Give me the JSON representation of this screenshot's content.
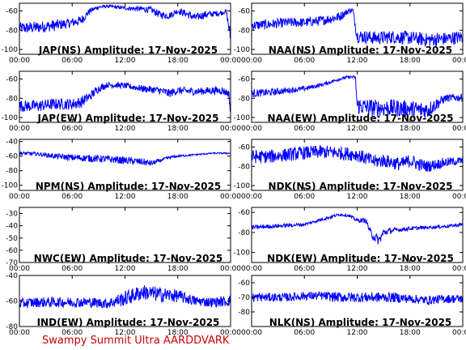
{
  "footer": {
    "text": "Swampy Summit Ultra AARDDVARK",
    "color": "#cc0000"
  },
  "colors": {
    "signal": "#0000ff",
    "axes": "#000000",
    "background": "#ffffff"
  },
  "x_tick_labels": [
    "00:00",
    "06:00",
    "12:00",
    "18:00",
    "00:00"
  ],
  "chart_data": [
    {
      "type": "line",
      "title": "JAP(NS) Amplitude: 17-Nov-2025",
      "xlabel": "",
      "ylabel": "",
      "ylim": [
        -105,
        -52
      ],
      "yticks": [
        -60,
        -80,
        -100
      ],
      "series": [
        {
          "x": [
            0,
            2,
            4,
            5.5,
            7,
            8,
            9,
            10,
            12,
            14,
            15,
            16,
            17,
            18,
            19,
            20,
            21,
            22,
            23,
            23.5,
            24
          ],
          "y": [
            -78,
            -77,
            -75,
            -73,
            -70,
            -60,
            -56,
            -55,
            -57,
            -58,
            -59,
            -64,
            -65,
            -60,
            -63,
            -67,
            -64,
            -63,
            -62,
            -60,
            -88
          ],
          "band": [
            12,
            12,
            12,
            10,
            10,
            6,
            4,
            3,
            4,
            6,
            7,
            8,
            7,
            6,
            8,
            8,
            8,
            6,
            5,
            4,
            18
          ]
        }
      ]
    },
    {
      "type": "line",
      "title": "NAA(NS) Amplitude: 17-Nov-2025",
      "xlabel": "",
      "ylabel": "",
      "ylim": [
        -105,
        -52
      ],
      "yticks": [
        -60,
        -80,
        -100
      ],
      "series": [
        {
          "x": [
            0,
            2,
            4,
            6,
            8,
            10,
            11,
            11.5,
            12,
            14,
            16,
            18,
            20,
            22,
            24
          ],
          "y": [
            -75,
            -74,
            -72,
            -72,
            -70,
            -66,
            -60,
            -59,
            -86,
            -88,
            -87,
            -88,
            -90,
            -89,
            -87
          ],
          "band": [
            10,
            10,
            10,
            10,
            10,
            10,
            6,
            5,
            14,
            14,
            14,
            14,
            14,
            14,
            14
          ]
        }
      ]
    },
    {
      "type": "line",
      "title": "JAP(EW) Amplitude: 17-Nov-2025",
      "xlabel": "",
      "ylabel": "",
      "ylim": [
        -105,
        -52
      ],
      "yticks": [
        -60,
        -80,
        -100
      ],
      "series": [
        {
          "x": [
            0,
            2,
            4,
            6,
            7,
            8,
            9,
            10,
            12,
            14,
            16,
            17,
            18,
            20,
            22,
            23,
            23.8,
            24
          ],
          "y": [
            -88,
            -88,
            -86,
            -86,
            -84,
            -78,
            -70,
            -66,
            -67,
            -70,
            -72,
            -75,
            -72,
            -73,
            -72,
            -72,
            -75,
            -95
          ],
          "band": [
            12,
            12,
            12,
            12,
            12,
            10,
            8,
            6,
            6,
            7,
            8,
            9,
            8,
            8,
            8,
            8,
            8,
            15
          ]
        }
      ]
    },
    {
      "type": "line",
      "title": "NAA(EW) Amplitude: 17-Nov-2025",
      "xlabel": "",
      "ylabel": "",
      "ylim": [
        -105,
        -52
      ],
      "yticks": [
        -60,
        -80,
        -100
      ],
      "series": [
        {
          "x": [
            0,
            2,
            4,
            6,
            8,
            10,
            11,
            11.8,
            12,
            14,
            16,
            18,
            19,
            20,
            22,
            24
          ],
          "y": [
            -75,
            -74,
            -72,
            -70,
            -66,
            -60,
            -58,
            -58,
            -88,
            -90,
            -90,
            -91,
            -92,
            -92,
            -80,
            -79
          ],
          "band": [
            8,
            8,
            6,
            5,
            4,
            3,
            3,
            3,
            18,
            18,
            18,
            18,
            18,
            18,
            8,
            8
          ]
        }
      ]
    },
    {
      "type": "line",
      "title": "NPM(NS) Amplitude: 17-Nov-2025",
      "xlabel": "",
      "ylabel": "",
      "ylim": [
        -107,
        -37
      ],
      "yticks": [
        -40,
        -60,
        -80,
        -100
      ],
      "series": [
        {
          "x": [
            0,
            2,
            4,
            6,
            8,
            10,
            12,
            14,
            15,
            16,
            17,
            18,
            20,
            22,
            24
          ],
          "y": [
            -56,
            -57,
            -60,
            -62,
            -63,
            -64,
            -66,
            -68,
            -70,
            -66,
            -62,
            -60,
            -58,
            -56,
            -56
          ],
          "band": [
            5,
            5,
            7,
            9,
            10,
            10,
            10,
            10,
            8,
            5,
            4,
            3,
            2,
            2,
            2
          ]
        }
      ]
    },
    {
      "type": "line",
      "title": "NDK(NS) Amplitude: 17-Nov-2025",
      "xlabel": "",
      "ylabel": "",
      "ylim": [
        -105,
        -52
      ],
      "yticks": [
        -60,
        -80,
        -100
      ],
      "series": [
        {
          "x": [
            0,
            2,
            4,
            6,
            8,
            10,
            12,
            13,
            14,
            15,
            16,
            17,
            18,
            19,
            20,
            22,
            24
          ],
          "y": [
            -70,
            -70,
            -68,
            -66,
            -65,
            -66,
            -68,
            -72,
            -75,
            -74,
            -76,
            -78,
            -74,
            -78,
            -80,
            -76,
            -74
          ],
          "band": [
            14,
            14,
            14,
            14,
            14,
            14,
            14,
            14,
            14,
            14,
            14,
            14,
            14,
            14,
            12,
            10,
            8
          ]
        }
      ]
    },
    {
      "type": "line",
      "title": "NWC(EW) Amplitude: 17-Nov-2025",
      "xlabel": "",
      "ylabel": "",
      "ylim": [
        -70,
        -25
      ],
      "yticks": [
        -30,
        -40,
        -50,
        -60,
        -70
      ],
      "series": [
        {
          "x": [
            0,
            4,
            8,
            12,
            16,
            20,
            24
          ],
          "y": [
            -70.5,
            -70.5,
            -70.5,
            -70.5,
            -70.5,
            -70.5,
            -70.5
          ],
          "band": [
            1,
            1,
            1,
            1,
            1,
            1,
            1
          ]
        }
      ]
    },
    {
      "type": "line",
      "title": "NDK(EW) Amplitude: 17-Nov-2025",
      "xlabel": "",
      "ylabel": "",
      "ylim": [
        -110,
        -55
      ],
      "yticks": [
        -60,
        -80,
        -100
      ],
      "series": [
        {
          "x": [
            0,
            2,
            4,
            6,
            8,
            10,
            11,
            12,
            13,
            13.5,
            14,
            14.5,
            15,
            16,
            18,
            20,
            22,
            24
          ],
          "y": [
            -75,
            -74,
            -73,
            -72,
            -67,
            -62,
            -63,
            -68,
            -68,
            -80,
            -85,
            -88,
            -80,
            -78,
            -76,
            -75,
            -74,
            -72
          ],
          "band": [
            4,
            4,
            4,
            3,
            3,
            3,
            3,
            4,
            5,
            8,
            10,
            10,
            8,
            5,
            4,
            3,
            3,
            3
          ]
        }
      ]
    },
    {
      "type": "line",
      "title": "IND(EW) Amplitude: 17-Nov-2025",
      "xlabel": "",
      "ylabel": "",
      "ylim": [
        -80,
        -40
      ],
      "yticks": [
        -40,
        -60,
        -80
      ],
      "series": [
        {
          "x": [
            0,
            2,
            4,
            6,
            8,
            10,
            12,
            14,
            16,
            18,
            20,
            22,
            24
          ],
          "y": [
            -62,
            -61,
            -61,
            -61,
            -61,
            -62,
            -58,
            -53,
            -55,
            -56,
            -60,
            -61,
            -60
          ],
          "band": [
            8,
            8,
            8,
            8,
            8,
            8,
            12,
            12,
            12,
            10,
            8,
            8,
            8
          ]
        }
      ]
    },
    {
      "type": "line",
      "title": "NLK(NS) Amplitude: 17-Nov-2025",
      "xlabel": "",
      "ylabel": "",
      "ylim": [
        -90,
        -55
      ],
      "yticks": [
        -60,
        -70,
        -80
      ],
      "series": [
        {
          "x": [
            0,
            2,
            4,
            6,
            8,
            10,
            12,
            14,
            16,
            18,
            20,
            22,
            24
          ],
          "y": [
            -70,
            -70,
            -70,
            -69,
            -69,
            -70,
            -70,
            -70,
            -70,
            -71,
            -72,
            -71,
            -71
          ],
          "band": [
            6,
            6,
            6,
            6,
            6,
            7,
            7,
            7,
            7,
            6,
            6,
            6,
            6
          ]
        }
      ]
    }
  ]
}
